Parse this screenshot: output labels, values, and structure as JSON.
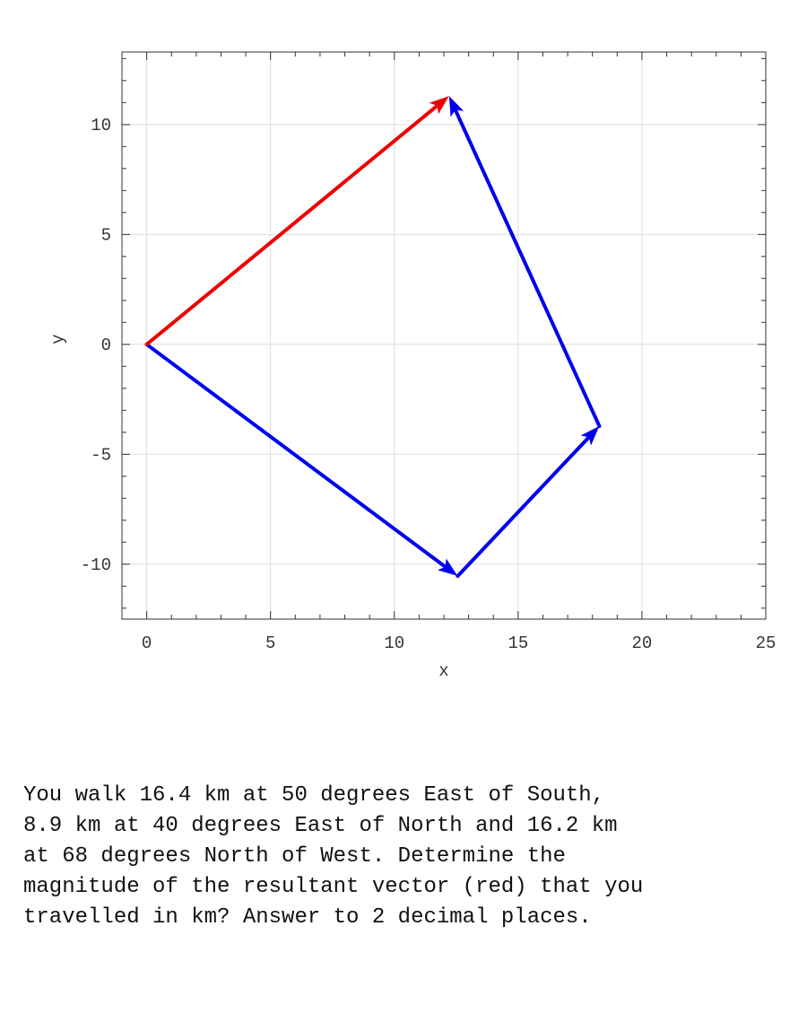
{
  "chart_data": {
    "type": "line",
    "title": "",
    "xlabel": "x",
    "ylabel": "y",
    "xlim": [
      -1,
      25
    ],
    "ylim": [
      -12.5,
      13.3
    ],
    "xticks": [
      0,
      5,
      10,
      15,
      20,
      25
    ],
    "yticks": [
      10,
      5,
      0,
      -5,
      -10
    ],
    "grid": true,
    "series": [
      {
        "role": "component",
        "color": "#0000ee",
        "arrows": [
          {
            "from": [
              0,
              0
            ],
            "to": [
              12.56,
              -10.54
            ]
          },
          {
            "from": [
              12.56,
              -10.54
            ],
            "to": [
              18.28,
              -3.72
            ]
          },
          {
            "from": [
              18.28,
              -3.72
            ],
            "to": [
              12.21,
              11.3
            ]
          }
        ]
      },
      {
        "role": "resultant",
        "color": "#ee0000",
        "arrows": [
          {
            "from": [
              0,
              0
            ],
            "to": [
              12.21,
              11.3
            ]
          }
        ]
      }
    ]
  },
  "question": "You walk 16.4 km at 50 degrees East of South,\n8.9 km at 40 degrees East of North and 16.2 km\nat 68 degrees North of West.  Determine the\nmagnitude of the resultant vector (red) that you\ntravelled in km? Answer to 2 decimal places."
}
